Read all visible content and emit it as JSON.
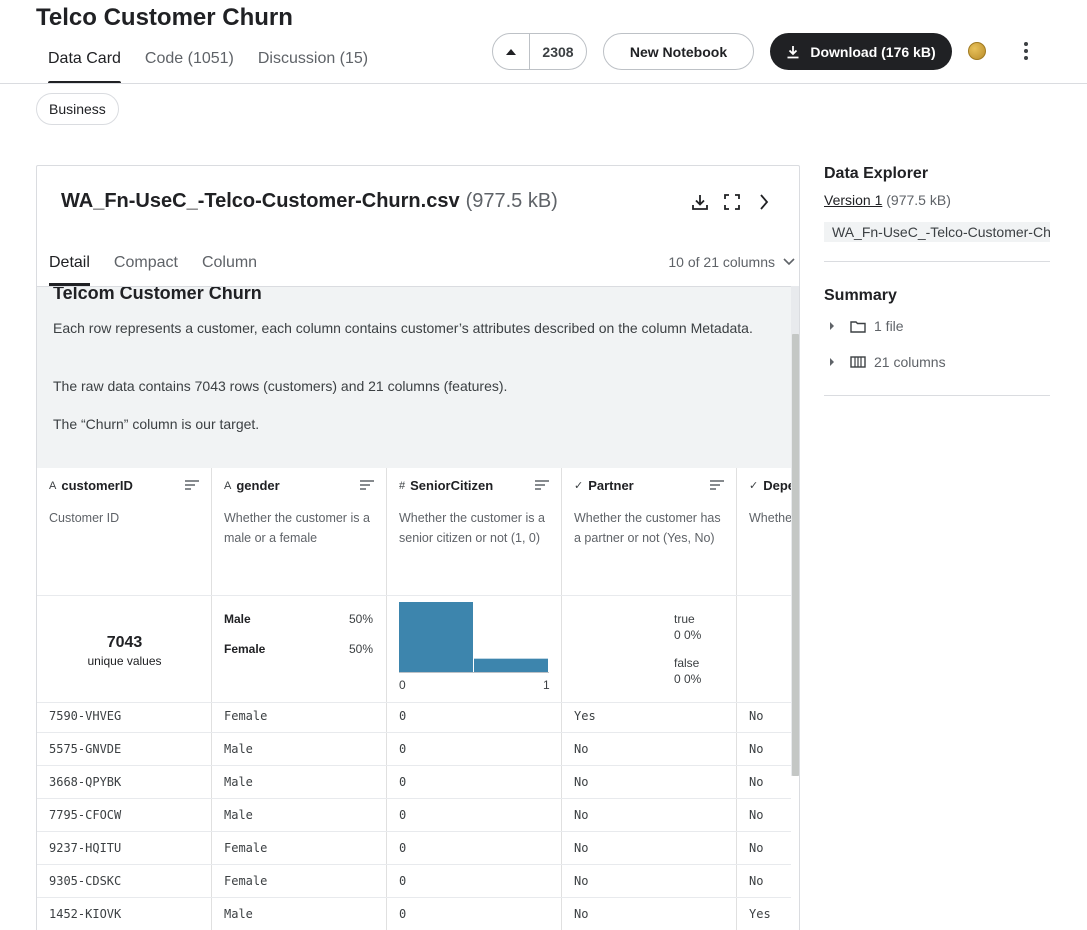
{
  "header": {
    "title": "Telco Customer Churn",
    "tabs": [
      {
        "label": "Data Card"
      },
      {
        "label": "Code (1051)"
      },
      {
        "label": "Discussion (15)"
      }
    ],
    "vote_count": "2308",
    "new_notebook_label": "New Notebook",
    "download_label": "Download (176 kB)"
  },
  "tag": "Business",
  "file": {
    "name": "WA_Fn-UseC_-Telco-Customer-Churn.csv",
    "size": "(977.5 kB)",
    "subtabs": [
      "Detail",
      "Compact",
      "Column"
    ],
    "column_selector": "10 of 21 columns"
  },
  "description": {
    "heading": "Telcom Customer Churn",
    "paragraphs": [
      "Each row represents a customer, each column contains customer’s attributes described on the column Metadata.",
      "The raw data contains 7043 rows (customers) and 21 columns (features).",
      "The “Churn” column is our target."
    ]
  },
  "columns": [
    {
      "type_icon": "A",
      "name": "customerID",
      "desc": "Customer ID"
    },
    {
      "type_icon": "A",
      "name": "gender",
      "desc": "Whether the customer is a male or a female"
    },
    {
      "type_icon": "#",
      "name": "SeniorCitizen",
      "desc": "Whether the customer is a senior citizen or not (1, 0)"
    },
    {
      "type_icon": "✓",
      "name": "Partner",
      "desc": "Whether the customer has a partner or not (Yes, No)"
    },
    {
      "type_icon": "✓",
      "name": "Depe",
      "desc": "Whethe has dep (Yes, N"
    }
  ],
  "stats": {
    "customerID": {
      "unique_count": "7043",
      "unique_label": "unique values"
    },
    "gender": [
      {
        "label": "Male",
        "pct": "50%"
      },
      {
        "label": "Female",
        "pct": "50%"
      }
    ],
    "senior": {
      "x_min": "0",
      "x_max": "1",
      "bars": [
        0.84,
        0.16
      ],
      "color": "#3d85ad"
    },
    "partner": {
      "true_label": "true",
      "true_value": "0  0%",
      "false_label": "false",
      "false_value": "0  0%"
    }
  },
  "rows": [
    [
      "7590-VHVEG",
      "Female",
      "0",
      "Yes",
      "No"
    ],
    [
      "5575-GNVDE",
      "Male",
      "0",
      "No",
      "No"
    ],
    [
      "3668-QPYBK",
      "Male",
      "0",
      "No",
      "No"
    ],
    [
      "7795-CFOCW",
      "Male",
      "0",
      "No",
      "No"
    ],
    [
      "9237-HQITU",
      "Female",
      "0",
      "No",
      "No"
    ],
    [
      "9305-CDSKC",
      "Female",
      "0",
      "No",
      "No"
    ],
    [
      "1452-KIOVK",
      "Male",
      "0",
      "No",
      "Yes"
    ]
  ],
  "explorer": {
    "title": "Data Explorer",
    "version_link": "Version 1",
    "version_size": "(977.5 kB)",
    "file_name": "WA_Fn-UseC_-Telco-Customer-Churn.csv",
    "summary_title": "Summary",
    "items": [
      {
        "icon": "folder-icon",
        "label": "1 file"
      },
      {
        "icon": "columns-icon",
        "label": "21 columns"
      }
    ]
  }
}
